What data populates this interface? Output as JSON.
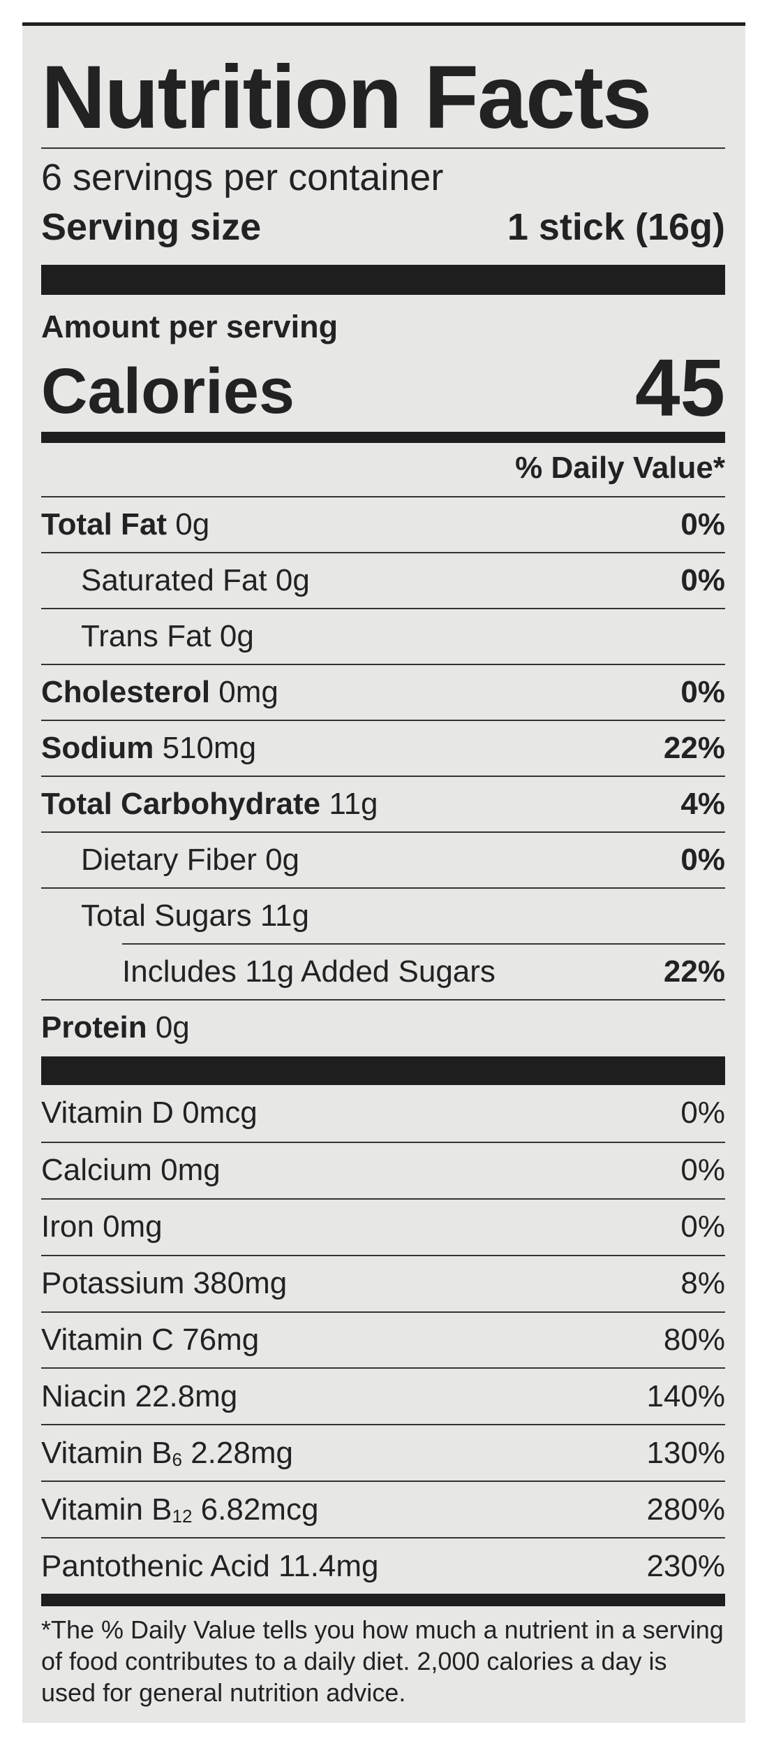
{
  "title": "Nutrition Facts",
  "servings_per_container": "6 servings per container",
  "serving_size": {
    "label": "Serving size",
    "value": "1 stick (16g)"
  },
  "amount_per_serving": "Amount per serving",
  "calories": {
    "label": "Calories",
    "value": "45"
  },
  "daily_value_header": "% Daily Value*",
  "nutrients": [
    {
      "name": "Total Fat",
      "amount": "0g",
      "dv": "0%",
      "bold": true
    },
    {
      "name": "Saturated Fat",
      "amount": "0g",
      "dv": "0%"
    },
    {
      "name": "Trans Fat",
      "amount": "0g",
      "dv": ""
    },
    {
      "name": "Cholesterol",
      "amount": "0mg",
      "dv": "0%",
      "bold": true
    },
    {
      "name": "Sodium",
      "amount": "510mg",
      "dv": "22%",
      "bold": true
    },
    {
      "name": "Total Carbohydrate",
      "amount": "11g",
      "dv": "4%",
      "bold": true
    },
    {
      "name": "Dietary Fiber",
      "amount": "0g",
      "dv": "0%"
    },
    {
      "name": "Total Sugars",
      "amount": "11g",
      "dv": ""
    },
    {
      "name": "Includes 11g Added Sugars",
      "amount": "",
      "dv": "22%"
    },
    {
      "name": "Protein",
      "amount": "0g",
      "dv": "",
      "bold": true
    }
  ],
  "vitamins": [
    {
      "name": "Vitamin D",
      "amount": "0mcg",
      "dv": "0%"
    },
    {
      "name": "Calcium",
      "amount": "0mg",
      "dv": "0%"
    },
    {
      "name": "Iron",
      "amount": "0mg",
      "dv": "0%"
    },
    {
      "name": "Potassium",
      "amount": "380mg",
      "dv": "8%"
    },
    {
      "name": "Vitamin C",
      "amount": "76mg",
      "dv": "80%"
    },
    {
      "name": "Niacin",
      "amount": "22.8mg",
      "dv": "140%"
    },
    {
      "name": "Vitamin B",
      "sub": "6",
      "amount": "2.28mg",
      "dv": "130%"
    },
    {
      "name": "Vitamin B",
      "sub": "12",
      "amount": "6.82mcg",
      "dv": "280%"
    },
    {
      "name": "Pantothenic Acid",
      "amount": "11.4mg",
      "dv": "230%"
    }
  ],
  "footnote": "*The % Daily Value tells you how much a nutrient in a serving of food contributes to a daily diet. 2,000 calories a day is used for general nutrition advice."
}
